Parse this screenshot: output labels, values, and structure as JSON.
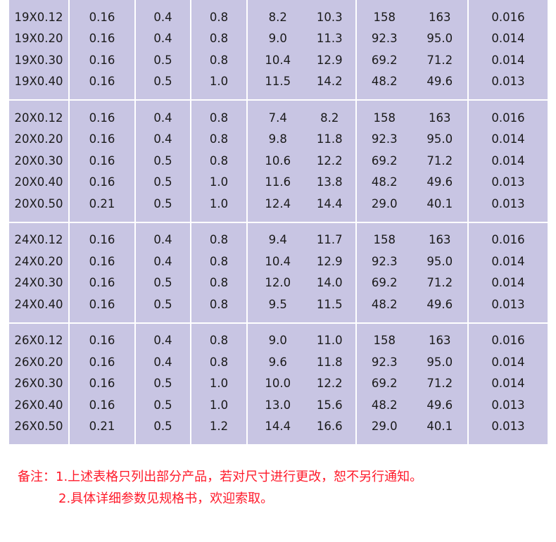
{
  "colors": {
    "table_bg": "#c8c5e3",
    "note": "#ff1a2a"
  },
  "groups": [
    {
      "rows": [
        [
          "19X0.12",
          "0.16",
          "0.4",
          "0.8",
          "8.2",
          "10.3",
          "158",
          "163",
          "0.016"
        ],
        [
          "19X0.20",
          "0.16",
          "0.4",
          "0.8",
          "9.0",
          "11.3",
          "92.3",
          "95.0",
          "0.014"
        ],
        [
          "19X0.30",
          "0.16",
          "0.5",
          "0.8",
          "10.4",
          "12.9",
          "69.2",
          "71.2",
          "0.014"
        ],
        [
          "19X0.40",
          "0.16",
          "0.5",
          "1.0",
          "11.5",
          "14.2",
          "48.2",
          "49.6",
          "0.013"
        ]
      ]
    },
    {
      "rows": [
        [
          "20X0.12",
          "0.16",
          "0.4",
          "0.8",
          "7.4",
          "8.2",
          "158",
          "163",
          "0.016"
        ],
        [
          "20X0.20",
          "0.16",
          "0.4",
          "0.8",
          "9.8",
          "11.8",
          "92.3",
          "95.0",
          "0.014"
        ],
        [
          "20X0.30",
          "0.16",
          "0.5",
          "0.8",
          "10.6",
          "12.2",
          "69.2",
          "71.2",
          "0.014"
        ],
        [
          "20X0.40",
          "0.16",
          "0.5",
          "1.0",
          "11.6",
          "13.8",
          "48.2",
          "49.6",
          "0.013"
        ],
        [
          "20X0.50",
          "0.21",
          "0.5",
          "1.0",
          "12.4",
          "14.4",
          "29.0",
          "40.1",
          "0.013"
        ]
      ]
    },
    {
      "rows": [
        [
          "24X0.12",
          "0.16",
          "0.4",
          "0.8",
          "9.4",
          "11.7",
          "158",
          "163",
          "0.016"
        ],
        [
          "24X0.20",
          "0.16",
          "0.4",
          "0.8",
          "10.4",
          "12.9",
          "92.3",
          "95.0",
          "0.014"
        ],
        [
          "24X0.30",
          "0.16",
          "0.5",
          "0.8",
          "12.0",
          "14.0",
          "69.2",
          "71.2",
          "0.014"
        ],
        [
          "24X0.40",
          "0.16",
          "0.5",
          "0.8",
          "9.5",
          "11.5",
          "48.2",
          "49.6",
          "0.013"
        ]
      ]
    },
    {
      "rows": [
        [
          "26X0.12",
          "0.16",
          "0.4",
          "0.8",
          "9.0",
          "11.0",
          "158",
          "163",
          "0.016"
        ],
        [
          "26X0.20",
          "0.16",
          "0.4",
          "0.8",
          "9.6",
          "11.8",
          "92.3",
          "95.0",
          "0.014"
        ],
        [
          "26X0.30",
          "0.16",
          "0.5",
          "1.0",
          "10.0",
          "12.2",
          "69.2",
          "71.2",
          "0.014"
        ],
        [
          "26X0.40",
          "0.16",
          "0.5",
          "1.0",
          "13.0",
          "15.6",
          "48.2",
          "49.6",
          "0.013"
        ],
        [
          "26X0.50",
          "0.21",
          "0.5",
          "1.2",
          "14.4",
          "16.6",
          "29.0",
          "40.1",
          "0.013"
        ]
      ]
    }
  ],
  "notes": {
    "line1": "备注：1.上述表格只列出部分产品，若对尺寸进行更改，恕不另行通知。",
    "line2": "2.具体详细参数见规格书，欢迎索取。"
  }
}
